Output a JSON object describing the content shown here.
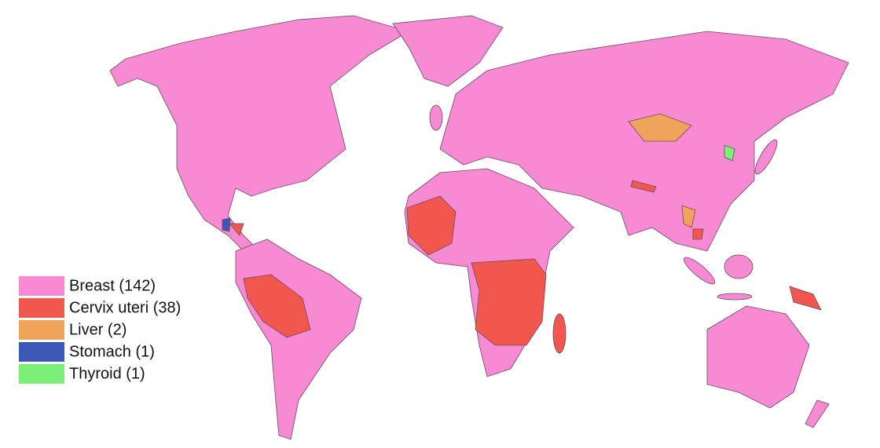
{
  "legend": {
    "items": [
      {
        "label": "Breast (142)",
        "color": "#f78ad3"
      },
      {
        "label": "Cervix uteri (38)",
        "color": "#f2574e"
      },
      {
        "label": "Liver (2)",
        "color": "#f0a35a"
      },
      {
        "label": "Stomach (1)",
        "color": "#3b57b8"
      },
      {
        "label": "Thyroid (1)",
        "color": "#7bef76"
      }
    ]
  }
}
